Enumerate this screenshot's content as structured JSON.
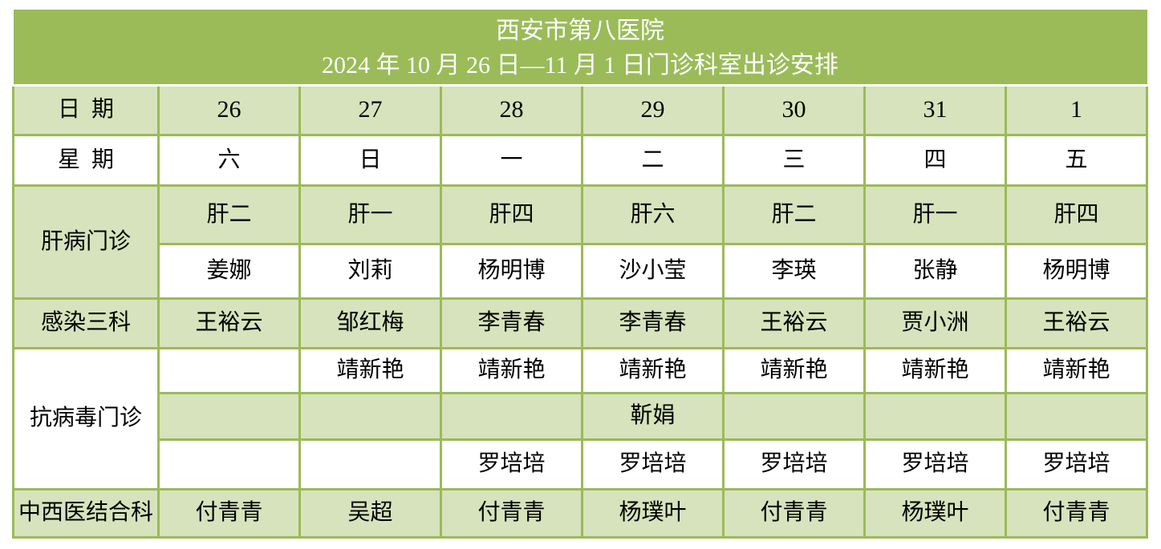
{
  "title": {
    "line1": "西安市第八医院",
    "line2": "2024 年 10 月 26 日—11 月 1 日门诊科室出诊安排"
  },
  "header": {
    "date_label": "日期",
    "dates": [
      "26",
      "27",
      "28",
      "29",
      "30",
      "31",
      "1"
    ],
    "week_label": "星期",
    "weekdays": [
      "六",
      "日",
      "一",
      "二",
      "三",
      "四",
      "五"
    ]
  },
  "sections": [
    {
      "name": "肝病门诊",
      "rows": [
        {
          "cells": [
            "肝二",
            "肝一",
            "肝四",
            "肝六",
            "肝二",
            "肝一",
            "肝四"
          ]
        },
        {
          "cells": [
            "姜娜",
            "刘莉",
            "杨明博",
            "沙小莹",
            "李瑛",
            "张静",
            "杨明博"
          ]
        }
      ]
    },
    {
      "name": "感染三科",
      "rows": [
        {
          "cells": [
            "王裕云",
            "邹红梅",
            "李青春",
            "李青春",
            "王裕云",
            "贾小洲",
            "王裕云"
          ]
        }
      ]
    },
    {
      "name": "抗病毒门诊",
      "rows": [
        {
          "cells": [
            "",
            "靖新艳",
            "靖新艳",
            "靖新艳",
            "靖新艳",
            "靖新艳",
            "靖新艳"
          ]
        },
        {
          "cells": [
            "",
            "",
            "",
            "靳娟",
            "",
            "",
            ""
          ]
        },
        {
          "cells": [
            "",
            "",
            "罗培培",
            "罗培培",
            "罗培培",
            "罗培培",
            "罗培培"
          ]
        }
      ]
    },
    {
      "name": "中西医结合科",
      "rows": [
        {
          "cells": [
            "付青青",
            "吴超",
            "付青青",
            "杨璞叶",
            "付青青",
            "杨璞叶",
            "付青青"
          ]
        }
      ]
    }
  ],
  "colors": {
    "band_green": "#9BBB59",
    "cell_green": "#D6E3BC",
    "border_green": "#9CBA58",
    "title_text": "#FFFFFF",
    "text": "#000000"
  }
}
